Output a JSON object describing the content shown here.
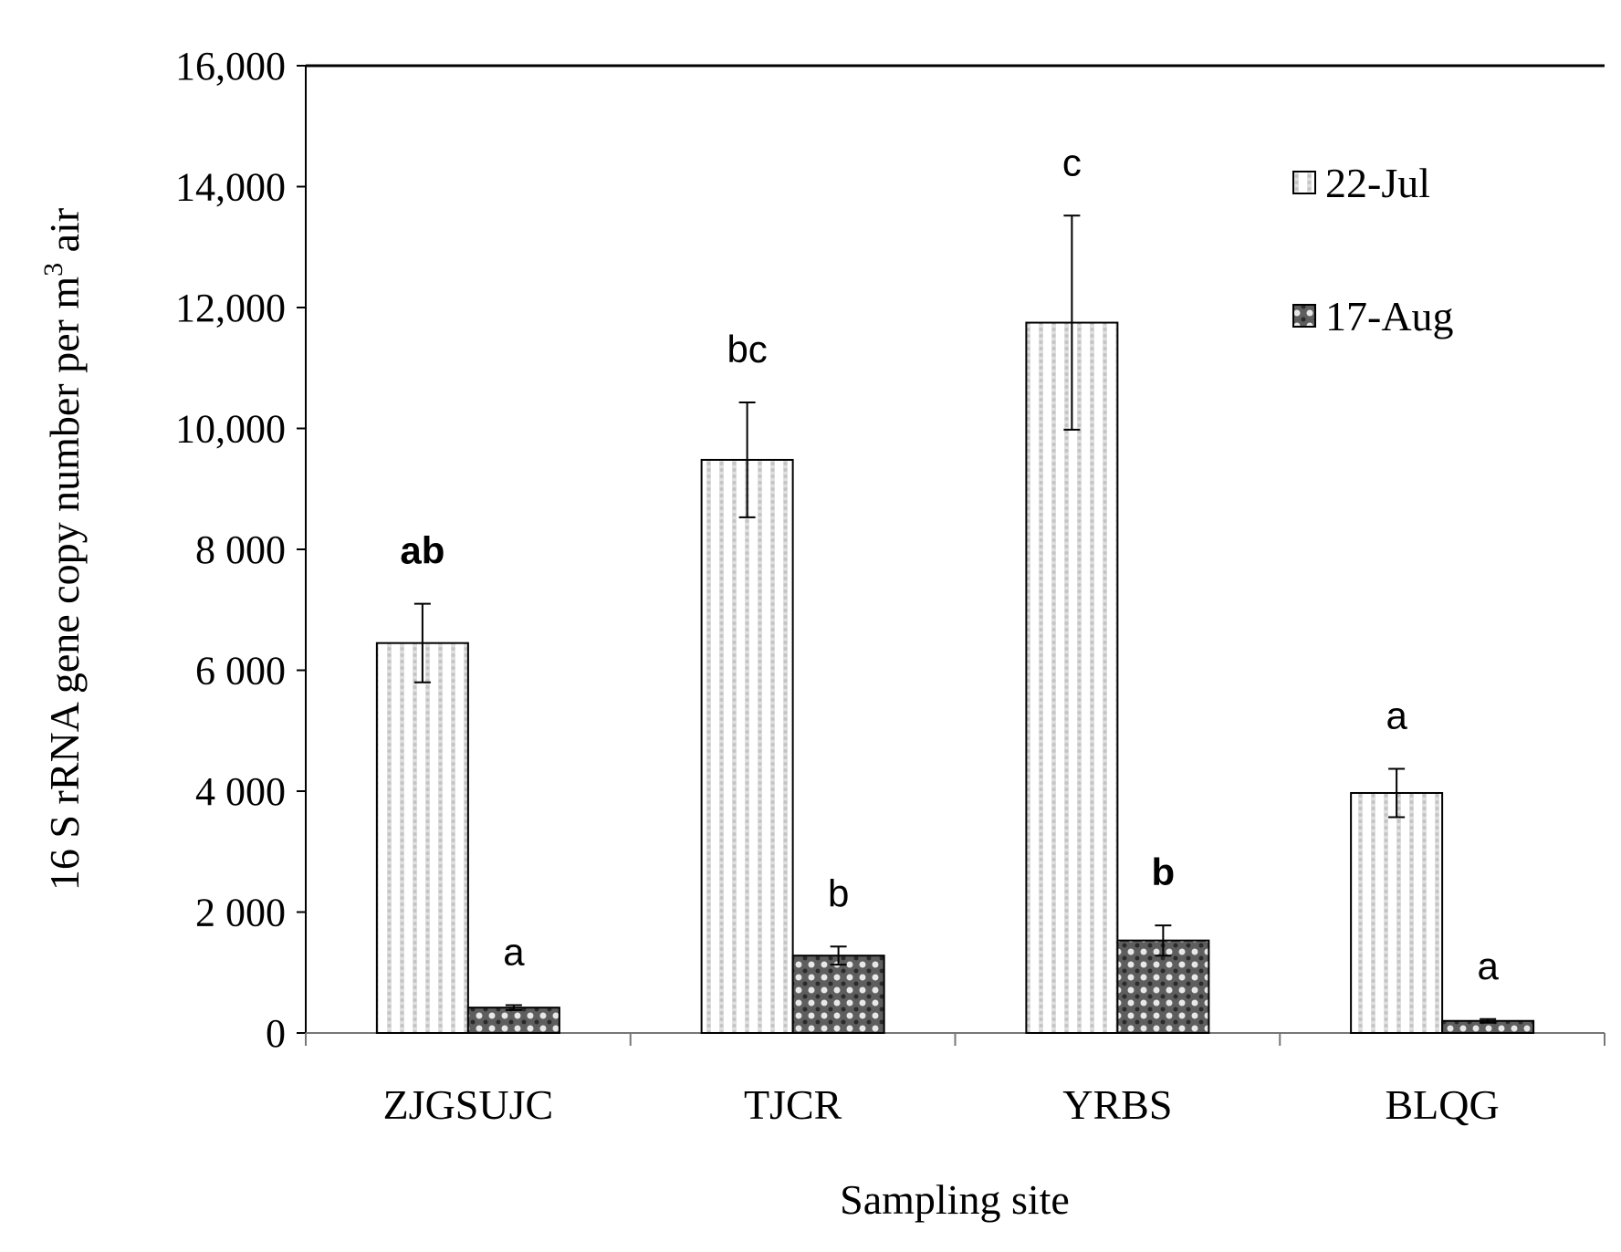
{
  "chart_data": {
    "type": "bar",
    "xlabel": "Sampling site",
    "ylabel": "16 S rRNA gene copy number per m",
    "ylabel_superscript": "3",
    "ylabel_suffix": " air",
    "ylim": [
      0,
      16000
    ],
    "yticks": [
      0,
      2000,
      4000,
      6000,
      8000,
      10000,
      12000,
      14000,
      16000
    ],
    "ytick_labels": [
      "0",
      "2 000",
      "4 000",
      "6 000",
      "8 000",
      "10,000",
      "12,000",
      "14,000",
      "16,000"
    ],
    "categories": [
      "ZJGSUJC",
      "TJCR",
      "YRBS",
      "BLQG"
    ],
    "legend_position": "top-right",
    "series": [
      {
        "name": "22-Jul",
        "fill": "#ffffff",
        "pattern": "light-dotted",
        "values": [
          6450,
          9480,
          11750,
          3970
        ],
        "errors": [
          650,
          950,
          1770,
          400
        ],
        "significance": [
          "ab",
          "bc",
          "c",
          "a"
        ],
        "significance_bold": [
          true,
          false,
          false,
          false
        ]
      },
      {
        "name": "17-Aug",
        "fill": "#666666",
        "pattern": "dark-dotted",
        "values": [
          420,
          1280,
          1530,
          200
        ],
        "errors": [
          40,
          150,
          250,
          30
        ],
        "significance": [
          "a",
          "b",
          "b",
          "a"
        ],
        "significance_bold": [
          false,
          false,
          true,
          false
        ]
      }
    ],
    "grid": false
  }
}
